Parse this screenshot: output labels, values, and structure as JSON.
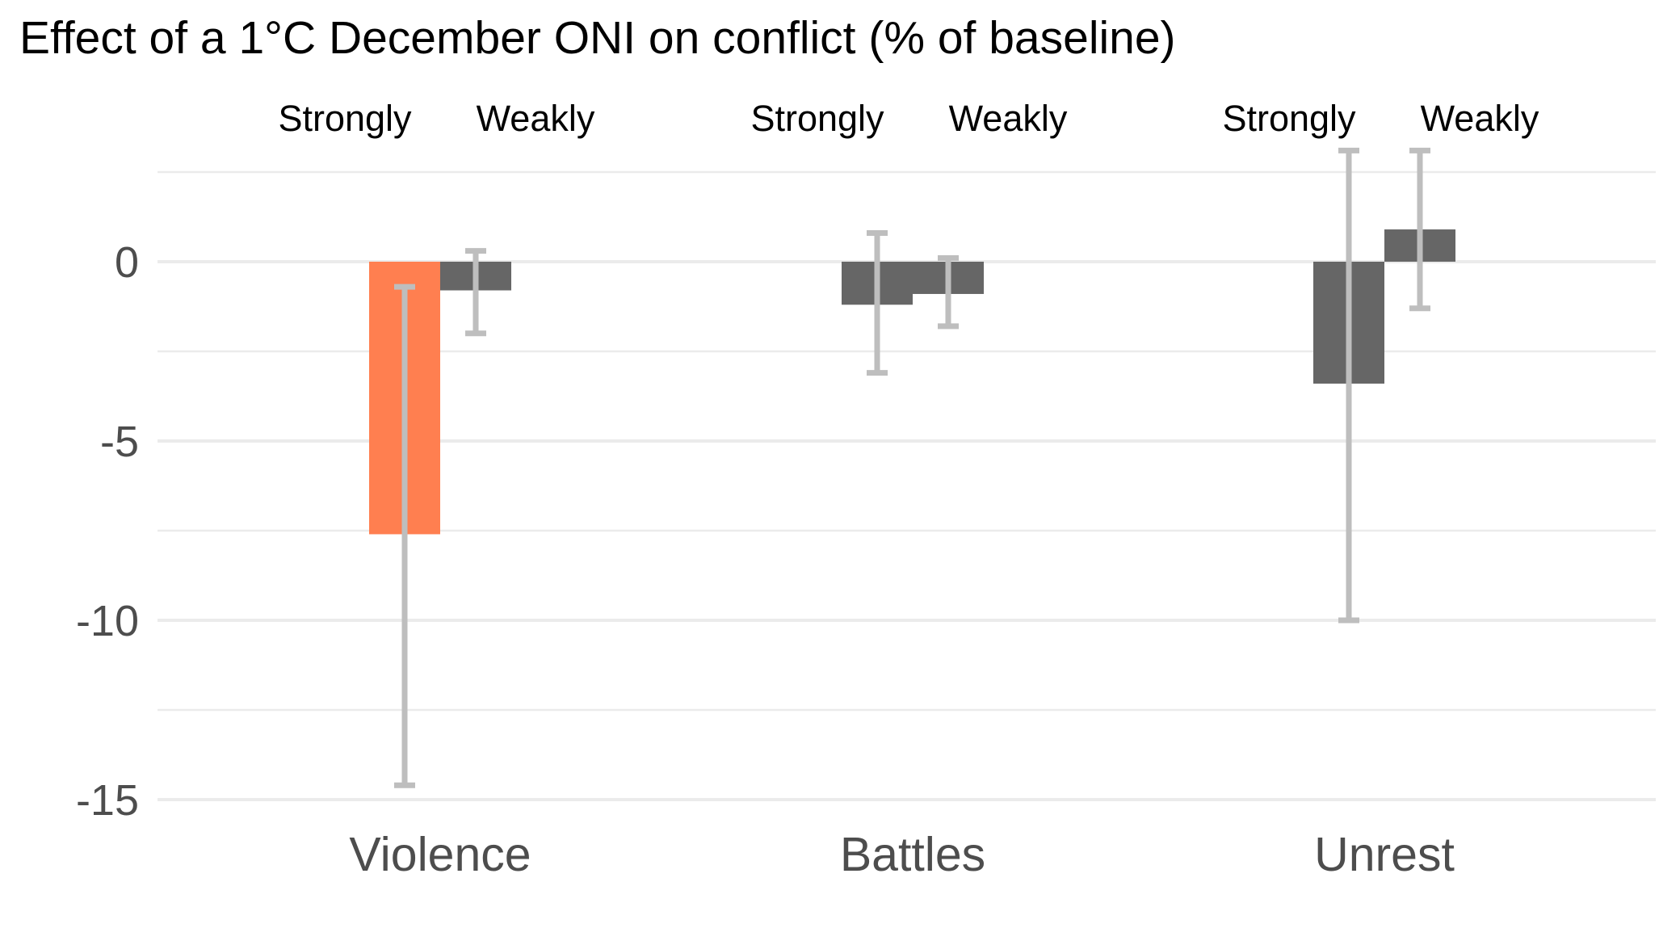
{
  "chart_data": {
    "type": "bar",
    "title": "Effect of a 1°C December ONI on conflict (% of baseline)",
    "categories": [
      "Violence",
      "Battles",
      "Unrest"
    ],
    "subgroups": [
      "Strongly",
      "Weakly"
    ],
    "series": [
      {
        "group": "Strongly",
        "values": [
          -7.6,
          -1.2,
          -3.4
        ],
        "ci_low": [
          -14.6,
          -3.1,
          -10.0
        ],
        "ci_high": [
          -0.7,
          0.8,
          3.1
        ],
        "colors": [
          "#ff7f50",
          "#666666",
          "#666666"
        ]
      },
      {
        "group": "Weakly",
        "values": [
          -0.8,
          -0.9,
          0.9
        ],
        "ci_low": [
          -2.0,
          -1.8,
          -1.3
        ],
        "ci_high": [
          0.3,
          0.1,
          3.1
        ],
        "colors": [
          "#666666",
          "#666666",
          "#666666"
        ]
      }
    ],
    "yticks": [
      0,
      -5,
      -10,
      -15
    ],
    "ylim": [
      -15.5,
      2.6
    ],
    "xlabel": "",
    "ylabel": "",
    "grid": true,
    "legend": "none",
    "errorbar_color": "#bebebe",
    "grid_color": "#ebebeb"
  }
}
